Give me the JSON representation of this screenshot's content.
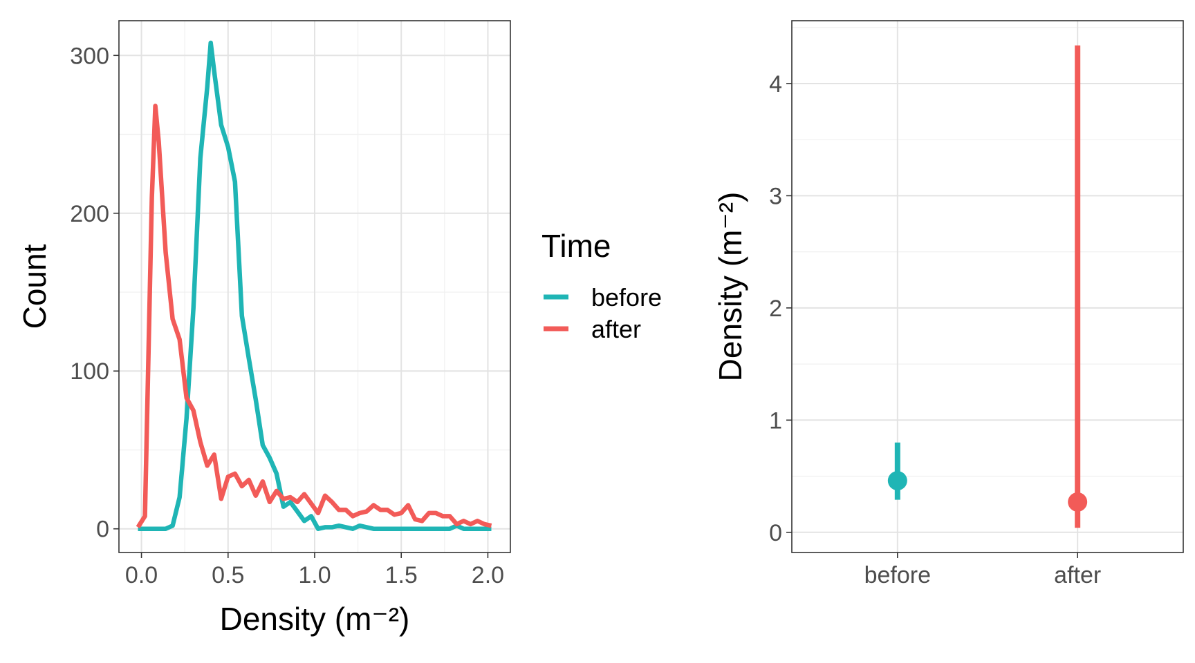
{
  "colors": {
    "before": "#1fb5b5",
    "after": "#f25b58",
    "panel_border": "#333333",
    "grid_major": "#e3e3e3",
    "grid_minor": "#f0f0f0"
  },
  "legend": {
    "title": "Time",
    "items": [
      {
        "label": "before",
        "color": "#1fb5b5"
      },
      {
        "label": "after",
        "color": "#f25b58"
      }
    ]
  },
  "chart_data": [
    {
      "type": "line",
      "xlabel": "Density (m⁻²)",
      "ylabel": "Count",
      "xlim": [
        -0.13,
        2.13
      ],
      "ylim": [
        -15,
        322
      ],
      "xticks": [
        0.0,
        0.5,
        1.0,
        1.5,
        2.0
      ],
      "xtick_labels": [
        "0.0",
        "0.5",
        "1.0",
        "1.5",
        "2.0"
      ],
      "yticks": [
        0,
        100,
        200,
        300
      ],
      "ytick_labels": [
        "0",
        "100",
        "200",
        "300"
      ],
      "grid": true,
      "series": [
        {
          "name": "before",
          "x": [
            -0.02,
            0.02,
            0.06,
            0.1,
            0.14,
            0.18,
            0.22,
            0.26,
            0.3,
            0.34,
            0.38,
            0.4,
            0.42,
            0.46,
            0.5,
            0.54,
            0.58,
            0.62,
            0.66,
            0.7,
            0.74,
            0.78,
            0.82,
            0.86,
            0.9,
            0.94,
            0.98,
            1.02,
            1.06,
            1.1,
            1.14,
            1.18,
            1.22,
            1.26,
            1.3,
            1.34,
            1.38,
            1.42,
            1.46,
            1.5,
            1.54,
            1.58,
            1.62,
            1.66,
            1.7,
            1.74,
            1.78,
            1.82,
            1.86,
            1.9,
            1.94,
            1.98,
            2.02
          ],
          "y": [
            0,
            0,
            0,
            0,
            0,
            2,
            20,
            70,
            140,
            235,
            280,
            308,
            290,
            256,
            242,
            220,
            135,
            108,
            82,
            53,
            45,
            35,
            14,
            17,
            11,
            5,
            8,
            0,
            1,
            1,
            2,
            1,
            0,
            2,
            1,
            0,
            0,
            0,
            0,
            0,
            0,
            0,
            0,
            0,
            0,
            0,
            0,
            2,
            0,
            0,
            0,
            0,
            0
          ]
        },
        {
          "name": "after",
          "x": [
            -0.02,
            0.02,
            0.06,
            0.08,
            0.1,
            0.14,
            0.18,
            0.22,
            0.26,
            0.3,
            0.34,
            0.38,
            0.42,
            0.46,
            0.5,
            0.54,
            0.58,
            0.62,
            0.66,
            0.7,
            0.74,
            0.78,
            0.82,
            0.86,
            0.9,
            0.94,
            0.98,
            1.02,
            1.06,
            1.1,
            1.14,
            1.18,
            1.22,
            1.26,
            1.3,
            1.34,
            1.38,
            1.42,
            1.46,
            1.5,
            1.54,
            1.58,
            1.62,
            1.66,
            1.7,
            1.74,
            1.78,
            1.82,
            1.86,
            1.9,
            1.94,
            1.98,
            2.02
          ],
          "y": [
            1,
            8,
            210,
            268,
            245,
            175,
            133,
            120,
            83,
            75,
            55,
            40,
            47,
            19,
            33,
            35,
            27,
            31,
            21,
            30,
            17,
            24,
            19,
            20,
            17,
            22,
            16,
            10,
            21,
            17,
            12,
            12,
            8,
            10,
            11,
            15,
            12,
            12,
            9,
            10,
            15,
            6,
            5,
            10,
            10,
            8,
            8,
            3,
            5,
            3,
            5,
            3,
            2
          ]
        }
      ]
    },
    {
      "type": "pointrange",
      "ylabel": "Density (m⁻²)",
      "categories": [
        "before",
        "after"
      ],
      "ylim": [
        -0.18,
        4.56
      ],
      "yticks": [
        0,
        1,
        2,
        3,
        4
      ],
      "ytick_labels": [
        "0",
        "1",
        "2",
        "3",
        "4"
      ],
      "grid": true,
      "points": [
        {
          "category": "before",
          "y": 0.46,
          "ymin": 0.29,
          "ymax": 0.8,
          "color": "#1fb5b5"
        },
        {
          "category": "after",
          "y": 0.27,
          "ymin": 0.04,
          "ymax": 4.34,
          "color": "#f25b58"
        }
      ]
    }
  ]
}
